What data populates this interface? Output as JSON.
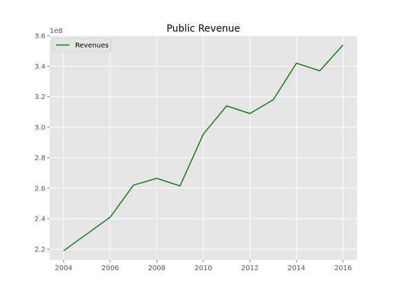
{
  "chart_data": {
    "type": "line",
    "title": "Public Revenue",
    "xlabel": "",
    "ylabel": "",
    "y_offset_label": "1e8",
    "x": [
      2004,
      2005,
      2006,
      2007,
      2008,
      2009,
      2010,
      2011,
      2012,
      2013,
      2014,
      2015,
      2016
    ],
    "series": [
      {
        "name": "Revenues",
        "color": "#008000",
        "values": [
          2.19,
          2.3,
          2.41,
          2.62,
          2.665,
          2.615,
          2.955,
          3.14,
          3.09,
          3.18,
          3.42,
          3.37,
          3.54
        ]
      }
    ],
    "xlim": [
      2003.4,
      2016.6
    ],
    "ylim": [
      2.13,
      3.6
    ],
    "x_ticks": [
      2004,
      2006,
      2008,
      2010,
      2012,
      2014,
      2016
    ],
    "x_tick_labels": [
      "2004",
      "2006",
      "2008",
      "2010",
      "2012",
      "2014",
      "2016"
    ],
    "y_ticks": [
      2.2,
      2.4,
      2.6,
      2.8,
      3.0,
      3.2,
      3.4,
      3.6
    ],
    "y_tick_labels": [
      "2.2",
      "2.4",
      "2.6",
      "2.8",
      "3.0",
      "3.2",
      "3.4",
      "3.6"
    ],
    "grid": true,
    "legend_position": "upper-left",
    "background_color": "#e5e5e5",
    "grid_color": "#ffffff"
  }
}
